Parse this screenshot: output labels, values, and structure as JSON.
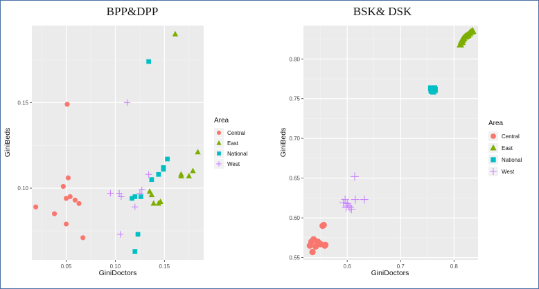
{
  "chart_data": [
    {
      "type": "scatter",
      "title": "BPP&DPP",
      "xlabel": "GiniDoctors",
      "ylabel": "GiniBeds",
      "xlim": [
        0.015,
        0.19
      ],
      "ylim": [
        0.058,
        0.195
      ],
      "xticks": [
        0.05,
        0.1,
        0.15
      ],
      "xtick_labels": [
        "0.05",
        "0.10",
        "0.15"
      ],
      "yticks": [
        0.1,
        0.15
      ],
      "ytick_labels": [
        "0.10",
        "0.15"
      ],
      "legend_title": "Area",
      "series": [
        {
          "name": "Central",
          "shape": "circle",
          "color": "#F8766D",
          "points": [
            [
              0.019,
              0.089
            ],
            [
              0.038,
              0.085
            ],
            [
              0.047,
              0.101
            ],
            [
              0.05,
              0.079
            ],
            [
              0.05,
              0.094
            ],
            [
              0.051,
              0.149
            ],
            [
              0.052,
              0.106
            ],
            [
              0.054,
              0.095
            ],
            [
              0.059,
              0.093
            ],
            [
              0.063,
              0.091
            ],
            [
              0.067,
              0.071
            ]
          ]
        },
        {
          "name": "East",
          "shape": "triangle",
          "color": "#7CAE00",
          "points": [
            [
              0.161,
              0.19
            ],
            [
              0.184,
              0.121
            ],
            [
              0.179,
              0.11
            ],
            [
              0.175,
              0.107
            ],
            [
              0.167,
              0.108
            ],
            [
              0.167,
              0.107
            ],
            [
              0.146,
              0.092
            ],
            [
              0.144,
              0.091
            ],
            [
              0.139,
              0.091
            ],
            [
              0.135,
              0.098
            ],
            [
              0.137,
              0.096
            ]
          ]
        },
        {
          "name": "National",
          "shape": "square",
          "color": "#00BFC4",
          "points": [
            [
              0.134,
              0.174
            ],
            [
              0.153,
              0.117
            ],
            [
              0.149,
              0.112
            ],
            [
              0.149,
              0.111
            ],
            [
              0.144,
              0.108
            ],
            [
              0.137,
              0.105
            ],
            [
              0.126,
              0.095
            ],
            [
              0.12,
              0.095
            ],
            [
              0.117,
              0.094
            ],
            [
              0.123,
              0.073
            ],
            [
              0.12,
              0.063
            ]
          ]
        },
        {
          "name": "West",
          "shape": "plus",
          "color": "#C77CFF",
          "points": [
            [
              0.112,
              0.15
            ],
            [
              0.134,
              0.108
            ],
            [
              0.127,
              0.099
            ],
            [
              0.125,
              0.097
            ],
            [
              0.104,
              0.097
            ],
            [
              0.095,
              0.097
            ],
            [
              0.106,
              0.095
            ],
            [
              0.12,
              0.089
            ],
            [
              0.105,
              0.073
            ]
          ]
        }
      ]
    },
    {
      "type": "scatter",
      "title": "BSK& DSK",
      "xlabel": "GiniDoctors",
      "ylabel": "GiniBeds",
      "xlim": [
        0.518,
        0.845
      ],
      "ylim": [
        0.547,
        0.842
      ],
      "xticks": [
        0.6,
        0.7,
        0.8
      ],
      "xtick_labels": [
        "0.6",
        "0.7",
        "0.8"
      ],
      "yticks": [
        0.55,
        0.6,
        0.65,
        0.7,
        0.75,
        0.8
      ],
      "ytick_labels": [
        "0.55",
        "0.60",
        "0.65",
        "0.70",
        "0.75",
        "0.80"
      ],
      "legend_title": "Area",
      "series": [
        {
          "name": "Central",
          "shape": "circle",
          "color": "#F8766D",
          "points": [
            [
              0.554,
              0.59
            ],
            [
              0.556,
              0.591
            ],
            [
              0.533,
              0.57
            ],
            [
              0.537,
              0.573
            ],
            [
              0.545,
              0.57
            ],
            [
              0.53,
              0.565
            ],
            [
              0.541,
              0.564
            ],
            [
              0.55,
              0.567
            ],
            [
              0.558,
              0.565
            ],
            [
              0.559,
              0.566
            ],
            [
              0.535,
              0.557
            ]
          ]
        },
        {
          "name": "East",
          "shape": "triangle",
          "color": "#7CAE00",
          "points": [
            [
              0.812,
              0.818
            ],
            [
              0.814,
              0.822
            ],
            [
              0.816,
              0.824
            ],
            [
              0.818,
              0.826
            ],
            [
              0.821,
              0.828
            ],
            [
              0.824,
              0.829
            ],
            [
              0.826,
              0.83
            ],
            [
              0.829,
              0.832
            ],
            [
              0.832,
              0.834
            ],
            [
              0.835,
              0.835
            ],
            [
              0.815,
              0.821
            ]
          ]
        },
        {
          "name": "National",
          "shape": "square",
          "color": "#00BFC4",
          "points": [
            [
              0.757,
              0.763
            ],
            [
              0.76,
              0.762
            ],
            [
              0.763,
              0.763
            ],
            [
              0.758,
              0.76
            ],
            [
              0.761,
              0.759
            ],
            [
              0.764,
              0.761
            ],
            [
              0.762,
              0.763
            ],
            [
              0.759,
              0.762
            ]
          ]
        },
        {
          "name": "West",
          "shape": "plus",
          "color": "#C77CFF",
          "points": [
            [
              0.614,
              0.652
            ],
            [
              0.632,
              0.623
            ],
            [
              0.615,
              0.623
            ],
            [
              0.596,
              0.623
            ],
            [
              0.593,
              0.619
            ],
            [
              0.6,
              0.618
            ],
            [
              0.602,
              0.615
            ],
            [
              0.605,
              0.613
            ],
            [
              0.608,
              0.611
            ],
            [
              0.598,
              0.613
            ]
          ]
        }
      ]
    }
  ]
}
